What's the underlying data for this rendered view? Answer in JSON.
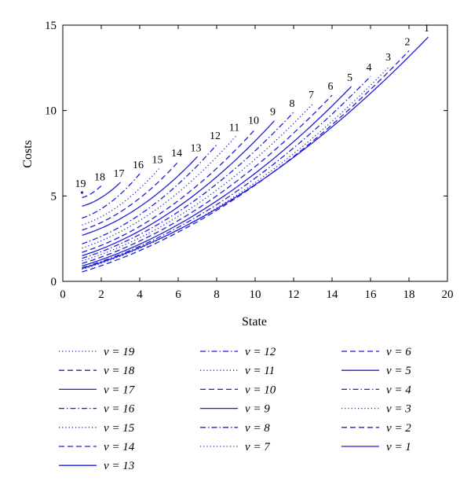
{
  "chart_data": {
    "type": "line",
    "xlabel": "State",
    "ylabel": "Costs",
    "xlim": [
      0,
      20
    ],
    "ylim": [
      0,
      15
    ],
    "xticks": [
      0,
      2,
      4,
      6,
      8,
      10,
      12,
      14,
      16,
      18,
      20
    ],
    "yticks": [
      0,
      5,
      10,
      15
    ],
    "grid": false,
    "legend_position": "bottom",
    "line_color": "#1f1fd6",
    "series": [
      {
        "name": "ν = 1",
        "label": "1",
        "dash": "solid",
        "start_y": 0.75,
        "end_x": 19,
        "end_y": 14.3
      },
      {
        "name": "ν = 2",
        "label": "2",
        "dash": "dashed",
        "start_y": 0.55,
        "end_x": 18,
        "end_y": 13.5
      },
      {
        "name": "ν = 3",
        "label": "3",
        "dash": "dotted",
        "start_y": 0.7,
        "end_x": 17,
        "end_y": 12.6
      },
      {
        "name": "ν = 4",
        "label": "4",
        "dash": "dashdot",
        "start_y": 0.8,
        "end_x": 16,
        "end_y": 12.0
      },
      {
        "name": "ν = 5",
        "label": "5",
        "dash": "solid",
        "start_y": 0.9,
        "end_x": 15,
        "end_y": 11.4
      },
      {
        "name": "ν = 6",
        "label": "6",
        "dash": "dashed",
        "start_y": 1.05,
        "end_x": 14,
        "end_y": 10.9
      },
      {
        "name": "ν = 7",
        "label": "7",
        "dash": "dotted",
        "start_y": 1.2,
        "end_x": 13,
        "end_y": 10.4
      },
      {
        "name": "ν = 8",
        "label": "8",
        "dash": "dashdot",
        "start_y": 1.35,
        "end_x": 12,
        "end_y": 9.9
      },
      {
        "name": "ν = 9",
        "label": "9",
        "dash": "solid",
        "start_y": 1.5,
        "end_x": 11,
        "end_y": 9.4
      },
      {
        "name": "ν = 10",
        "label": "10",
        "dash": "dashed",
        "start_y": 1.7,
        "end_x": 10,
        "end_y": 8.9
      },
      {
        "name": "ν = 11",
        "label": "11",
        "dash": "dotted",
        "start_y": 1.95,
        "end_x": 9,
        "end_y": 8.5
      },
      {
        "name": "ν = 12",
        "label": "12",
        "dash": "dashdot",
        "start_y": 2.2,
        "end_x": 8,
        "end_y": 8.0
      },
      {
        "name": "ν = 13",
        "label": "13",
        "dash": "solid",
        "start_y": 2.7,
        "end_x": 7,
        "end_y": 7.3
      },
      {
        "name": "ν = 14",
        "label": "14",
        "dash": "dashed",
        "start_y": 3.0,
        "end_x": 6,
        "end_y": 7.0
      },
      {
        "name": "ν = 15",
        "label": "15",
        "dash": "dotted",
        "start_y": 3.3,
        "end_x": 5,
        "end_y": 6.6
      },
      {
        "name": "ν = 16",
        "label": "16",
        "dash": "dashdot",
        "start_y": 3.7,
        "end_x": 4,
        "end_y": 6.3
      },
      {
        "name": "ν = 17",
        "label": "17",
        "dash": "solid",
        "start_y": 4.4,
        "end_x": 3,
        "end_y": 5.8
      },
      {
        "name": "ν = 18",
        "label": "18",
        "dash": "dashed",
        "start_y": 4.9,
        "end_x": 2,
        "end_y": 5.6
      },
      {
        "name": "ν = 19",
        "label": "19",
        "dash": "dotted",
        "start_y": 5.2,
        "end_x": 1,
        "end_y": 5.2
      }
    ],
    "legend_order": [
      19,
      18,
      17,
      16,
      15,
      14,
      13,
      12,
      11,
      10,
      9,
      8,
      7,
      6,
      5,
      4,
      3,
      2,
      1
    ]
  }
}
